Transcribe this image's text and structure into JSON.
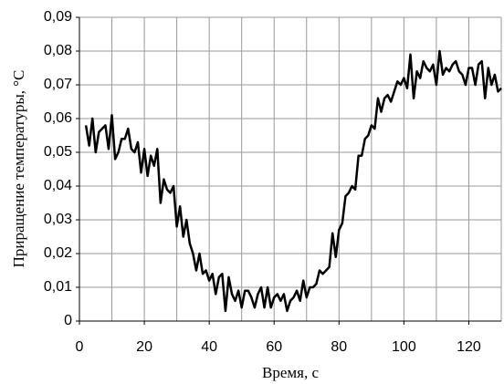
{
  "chart_data": {
    "type": "line",
    "x_label": "Время, с",
    "y_label": "Приращение температуры, °С",
    "x": [
      2,
      3,
      4,
      5,
      6,
      7,
      8,
      9,
      10,
      11,
      12,
      13,
      14,
      15,
      16,
      17,
      18,
      19,
      20,
      21,
      22,
      23,
      24,
      25,
      26,
      27,
      28,
      29,
      30,
      31,
      32,
      33,
      34,
      35,
      36,
      37,
      38,
      39,
      40,
      41,
      42,
      43,
      44,
      45,
      46,
      47,
      48,
      49,
      50,
      51,
      52,
      53,
      54,
      55,
      56,
      57,
      58,
      59,
      60,
      61,
      62,
      63,
      64,
      65,
      66,
      67,
      68,
      69,
      70,
      71,
      72,
      73,
      74,
      75,
      76,
      77,
      78,
      79,
      80,
      81,
      82,
      83,
      84,
      85,
      86,
      87,
      88,
      89,
      90,
      91,
      92,
      93,
      94,
      95,
      96,
      97,
      98,
      99,
      100,
      101,
      102,
      103,
      104,
      105,
      106,
      107,
      108,
      109,
      110,
      111,
      112,
      113,
      114,
      115,
      116,
      117,
      118,
      119,
      120,
      121,
      122,
      123,
      124,
      125,
      126,
      127,
      128,
      129,
      130
    ],
    "series": [
      {
        "color": "#000000",
        "values": [
          0.058,
          0.052,
          0.06,
          0.05,
          0.056,
          0.057,
          0.058,
          0.051,
          0.061,
          0.048,
          0.05,
          0.054,
          0.054,
          0.057,
          0.051,
          0.05,
          0.053,
          0.044,
          0.051,
          0.043,
          0.049,
          0.046,
          0.051,
          0.035,
          0.042,
          0.039,
          0.038,
          0.04,
          0.028,
          0.034,
          0.025,
          0.03,
          0.023,
          0.02,
          0.015,
          0.02,
          0.014,
          0.015,
          0.012,
          0.014,
          0.008,
          0.013,
          0.014,
          0.003,
          0.013,
          0.008,
          0.006,
          0.009,
          0.004,
          0.009,
          0.009,
          0.007,
          0.004,
          0.008,
          0.01,
          0.004,
          0.01,
          0.004,
          0.007,
          0.008,
          0.006,
          0.008,
          0.003,
          0.006,
          0.007,
          0.009,
          0.006,
          0.012,
          0.007,
          0.01,
          0.01,
          0.011,
          0.015,
          0.014,
          0.015,
          0.016,
          0.026,
          0.019,
          0.027,
          0.029,
          0.037,
          0.038,
          0.04,
          0.039,
          0.049,
          0.049,
          0.054,
          0.055,
          0.058,
          0.057,
          0.066,
          0.062,
          0.066,
          0.067,
          0.065,
          0.068,
          0.071,
          0.07,
          0.072,
          0.069,
          0.079,
          0.066,
          0.074,
          0.072,
          0.077,
          0.075,
          0.074,
          0.076,
          0.07,
          0.08,
          0.073,
          0.075,
          0.074,
          0.076,
          0.077,
          0.074,
          0.073,
          0.07,
          0.075,
          0.075,
          0.07,
          0.076,
          0.077,
          0.066,
          0.075,
          0.07,
          0.073,
          0.068,
          0.069
        ]
      }
    ],
    "xlim": [
      0,
      130
    ],
    "xticks": [
      0,
      20,
      40,
      60,
      80,
      100,
      120
    ],
    "x_minor_grid": [
      10,
      30,
      50,
      70,
      90,
      110,
      130
    ],
    "ylim": [
      0,
      0.09
    ],
    "yticks": [
      0,
      {
        "value": 0.01,
        "label": "0,01"
      },
      {
        "value": 0.02,
        "label": "0,02"
      },
      {
        "value": 0.03,
        "label": "0,03"
      },
      {
        "value": 0.04,
        "label": "0,04"
      },
      {
        "value": 0.05,
        "label": "0,05"
      },
      {
        "value": 0.06,
        "label": "0,06"
      },
      {
        "value": 0.07,
        "label": "0,07"
      },
      {
        "value": 0.08,
        "label": "0,08"
      },
      {
        "value": 0.09,
        "label": "0,09"
      }
    ],
    "grid": true
  }
}
